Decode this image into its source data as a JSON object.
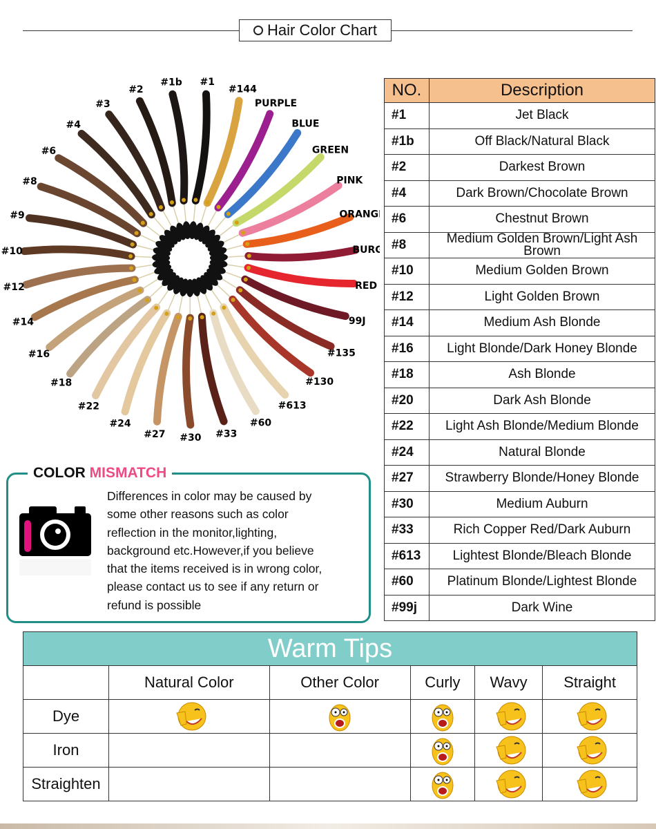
{
  "header": {
    "title": "Hair Color Chart"
  },
  "swatches": [
    {
      "label": "#1b",
      "color": "#1c1714"
    },
    {
      "label": "#1",
      "color": "#141111"
    },
    {
      "label": "#144",
      "color": "#d9a440"
    },
    {
      "label": "PURPLE",
      "color": "#9b1f8e"
    },
    {
      "label": "BLUE",
      "color": "#3b78c9"
    },
    {
      "label": "GREEN",
      "color": "#c5d96a"
    },
    {
      "label": "PINK",
      "color": "#eb7f9d"
    },
    {
      "label": "ORANGE",
      "color": "#e85f1c"
    },
    {
      "label": "BURG",
      "color": "#8f1b35"
    },
    {
      "label": "RED",
      "color": "#e5262f"
    },
    {
      "label": "99J",
      "color": "#6e1a26"
    },
    {
      "label": "#135",
      "color": "#8a2b26"
    },
    {
      "label": "#130",
      "color": "#a8362a"
    },
    {
      "label": "#613",
      "color": "#e7d3ae"
    },
    {
      "label": "#60",
      "color": "#e9dcc4"
    },
    {
      "label": "#33",
      "color": "#5a2118"
    },
    {
      "label": "#30",
      "color": "#8a4a2c"
    },
    {
      "label": "#27",
      "color": "#c69566"
    },
    {
      "label": "#24",
      "color": "#e4c99f"
    },
    {
      "label": "#22",
      "color": "#e2c7a2"
    },
    {
      "label": "#18",
      "color": "#bca384"
    },
    {
      "label": "#16",
      "color": "#c4a27a"
    },
    {
      "label": "#14",
      "color": "#a7784d"
    },
    {
      "label": "#12",
      "color": "#9d7150"
    },
    {
      "label": "#10",
      "color": "#5e3a24"
    },
    {
      "label": "#9",
      "color": "#4f3222"
    },
    {
      "label": "#8",
      "color": "#6a4530"
    },
    {
      "label": "#6",
      "color": "#6b4630"
    },
    {
      "label": "#4",
      "color": "#3f2a1f"
    },
    {
      "label": "#3",
      "color": "#36251d"
    },
    {
      "label": "#2",
      "color": "#261a15"
    }
  ],
  "color_table": {
    "headers": [
      "NO.",
      "Description"
    ],
    "rows": [
      [
        "#1",
        "Jet Black"
      ],
      [
        "#1b",
        "Off Black/Natural Black"
      ],
      [
        "#2",
        "Darkest Brown"
      ],
      [
        "#4",
        "Dark Brown/Chocolate Brown"
      ],
      [
        "#6",
        "Chestnut Brown"
      ],
      [
        "#8",
        "Medium Golden Brown/Light Ash Brown"
      ],
      [
        "#10",
        "Medium Golden Brown"
      ],
      [
        "#12",
        "Light Golden Brown"
      ],
      [
        "#14",
        "Medium Ash Blonde"
      ],
      [
        "#16",
        "Light Blonde/Dark Honey Blonde"
      ],
      [
        "#18",
        "Ash Blonde"
      ],
      [
        "#20",
        "Dark Ash Blonde"
      ],
      [
        "#22",
        "Light Ash Blonde/Medium Blonde"
      ],
      [
        "#24",
        "Natural Blonde"
      ],
      [
        "#27",
        "Strawberry Blonde/Honey Blonde"
      ],
      [
        "#30",
        "Medium Auburn"
      ],
      [
        "#33",
        "Rich Copper Red/Dark Auburn"
      ],
      [
        "#613",
        "Lightest Blonde/Bleach Blonde"
      ],
      [
        "#60",
        "Platinum Blonde/Lightest Blonde"
      ],
      [
        "#99j",
        "Dark Wine"
      ]
    ]
  },
  "mismatch": {
    "title_a": "COLOR",
    "title_b": "MISMATCH",
    "accent": "#ee4a85",
    "border": "#1f8f88",
    "lines": [
      "Differences in color may be caused by",
      "some other reasons such as color",
      "reflection in the monitor,lighting,",
      "background etc.However,if you believe",
      "that the items received is in wrong color,",
      "please contact us to see if any return or",
      "refund is possible"
    ],
    "icon": "camera-icon"
  },
  "tips": {
    "title": "Warm Tips",
    "header_color": "#80cdc9",
    "columns": [
      "Natural Color",
      "Other Color",
      "Curly",
      "Wavy",
      "Straight"
    ],
    "rows": [
      {
        "label": "Dye",
        "cells": [
          "happy",
          "shocked",
          "shocked",
          "happy",
          "happy"
        ]
      },
      {
        "label": "Iron",
        "cells": [
          "",
          "",
          "shocked",
          "happy",
          "happy"
        ]
      },
      {
        "label": "Straighten",
        "cells": [
          "",
          "",
          "shocked",
          "happy",
          "happy"
        ]
      }
    ]
  }
}
